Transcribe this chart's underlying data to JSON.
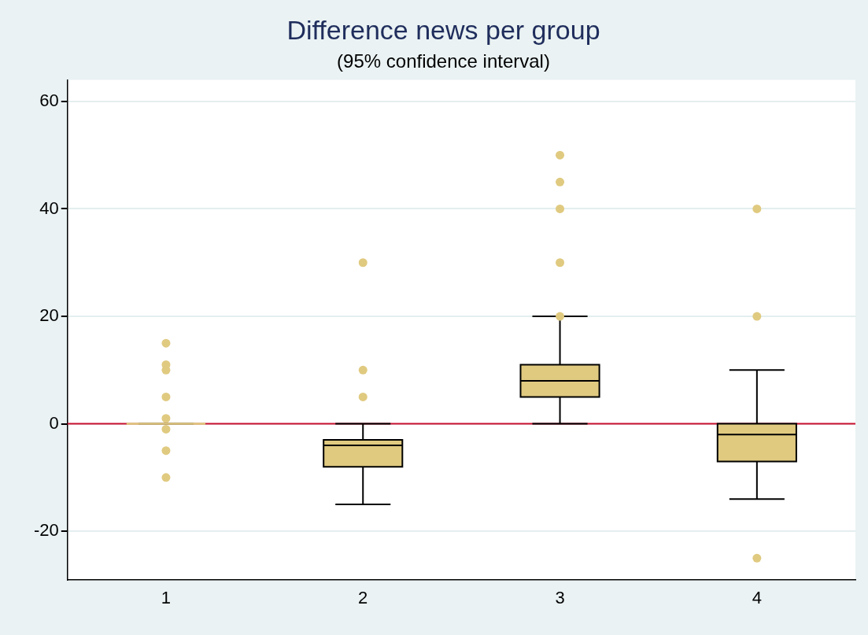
{
  "chart_data": {
    "type": "box",
    "title": "Difference news per group",
    "subtitle": "(95% confidence interval)",
    "categories": [
      "1",
      "2",
      "3",
      "4"
    ],
    "series": [
      {
        "color": "#e0ca80",
        "boxes": [
          {
            "low": 0,
            "q1": 0,
            "median": 0,
            "q3": 0,
            "high": 0,
            "outliers": [
              15,
              11,
              10,
              5,
              1,
              -1,
              -5,
              -10
            ]
          },
          {
            "low": -15,
            "q1": -8,
            "median": -4,
            "q3": -3,
            "high": 0,
            "outliers": [
              30,
              10,
              5
            ]
          },
          {
            "low": 0,
            "q1": 5,
            "median": 8,
            "q3": 11,
            "high": 20,
            "outliers": [
              20,
              30,
              40,
              45,
              50
            ]
          },
          {
            "low": -14,
            "q1": -7,
            "median": -2,
            "q3": 0,
            "high": 10,
            "outliers": [
              40,
              20,
              -25
            ]
          }
        ]
      }
    ],
    "ylim": [
      -29,
      64
    ],
    "yticks": [
      -20,
      0,
      20,
      40,
      60
    ],
    "grid": "y",
    "marker": "circle",
    "ref_lines": [
      {
        "axis": "y",
        "value": 0,
        "color": "#c8102e"
      }
    ]
  }
}
